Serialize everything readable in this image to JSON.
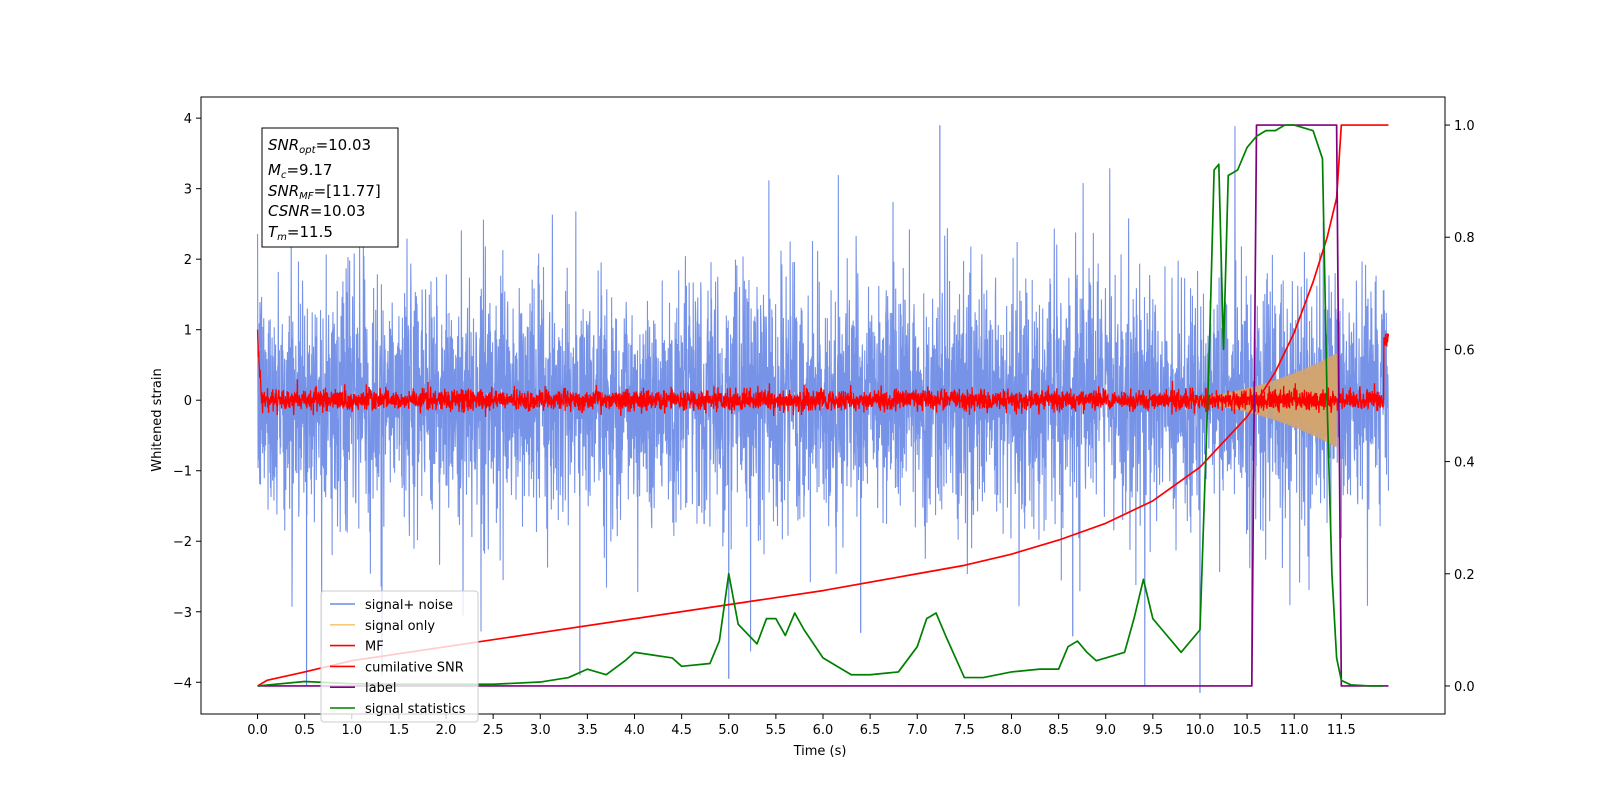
{
  "chart_data": {
    "type": "line",
    "xlabel": "Time (s)",
    "ylabel": "Whitened strain",
    "xlim": [
      -0.6,
      12.6
    ],
    "ylim_left": [
      -4.45,
      4.3
    ],
    "ylim_right": [
      -0.05,
      1.05
    ],
    "x_ticks": [
      "0.0",
      "0.5",
      "1.0",
      "1.5",
      "2.0",
      "2.5",
      "3.0",
      "3.5",
      "4.0",
      "4.5",
      "5.0",
      "5.5",
      "6.0",
      "6.5",
      "7.0",
      "7.5",
      "8.0",
      "8.5",
      "9.0",
      "9.5",
      "10.0",
      "10.5",
      "11.0",
      "11.5"
    ],
    "y_left_ticks": [
      "4",
      "3",
      "2",
      "1",
      "0",
      "−1",
      "−2",
      "−3",
      "−4"
    ],
    "y_right_ticks": [
      "1.0",
      "0.8",
      "0.6",
      "0.4",
      "0.2",
      "0.0"
    ],
    "grid": false,
    "legend_position": "lower-left",
    "annotation": {
      "line1": {
        "main": "SNR",
        "sub": "opt",
        "rest": "=10.03"
      },
      "line2": {
        "main": "M",
        "sub": "c",
        "rest": "=9.17"
      },
      "line3": {
        "main": "SNR",
        "sub": "MF",
        "rest": "=[11.77]"
      },
      "line4": {
        "main": "CSNR",
        "sub": "",
        "rest": "=10.03"
      },
      "line5": {
        "main": "T",
        "sub": "m",
        "rest": "=11.5"
      }
    },
    "series": [
      {
        "name": "signal+ noise",
        "color": "#6b8ae6",
        "axis": "left",
        "description_values": "noise band approx ±1.5 with spikes to 3.9 and −4.1, t 0 to 12"
      },
      {
        "name": "signal only",
        "color": "#f5c97a",
        "axis": "left",
        "envelope": {
          "start_t": 9.5,
          "end_t": 11.45,
          "max_amp": 0.65
        }
      },
      {
        "name": "MF",
        "color": "#ff0000",
        "axis": "left",
        "values_note": "noise around 0 with amplitude ~0.12, initial value 1.0 at t=0"
      },
      {
        "name": "cumilative SNR",
        "color": "#ff0000",
        "axis": "right",
        "x": [
          0.0,
          0.1,
          0.5,
          1.0,
          2.0,
          3.0,
          4.0,
          5.0,
          6.0,
          7.0,
          7.5,
          8.0,
          8.5,
          9.0,
          9.5,
          10.0,
          10.5,
          10.8,
          11.0,
          11.2,
          11.35,
          11.45,
          11.5,
          12.0
        ],
        "y": [
          0.0,
          0.01,
          0.025,
          0.045,
          0.07,
          0.095,
          0.12,
          0.145,
          0.17,
          0.2,
          0.215,
          0.235,
          0.26,
          0.29,
          0.33,
          0.39,
          0.48,
          0.56,
          0.63,
          0.72,
          0.8,
          0.87,
          1.0,
          1.0
        ]
      },
      {
        "name": "label",
        "color": "#800080",
        "axis": "right",
        "x": [
          0.0,
          10.55,
          10.6,
          11.45,
          11.5,
          12.0
        ],
        "y": [
          0.0,
          0.0,
          1.0,
          1.0,
          0.0,
          0.0
        ]
      },
      {
        "name": "signal statistics",
        "color": "#008000",
        "axis": "right",
        "x": [
          0.0,
          0.5,
          1.0,
          1.5,
          2.0,
          2.5,
          3.0,
          3.3,
          3.5,
          3.7,
          3.9,
          4.0,
          4.2,
          4.4,
          4.5,
          4.8,
          4.9,
          5.0,
          5.1,
          5.3,
          5.4,
          5.5,
          5.6,
          5.7,
          5.8,
          6.0,
          6.3,
          6.5,
          6.8,
          7.0,
          7.1,
          7.2,
          7.3,
          7.5,
          7.7,
          8.0,
          8.3,
          8.5,
          8.6,
          8.7,
          8.8,
          8.9,
          9.0,
          9.2,
          9.3,
          9.4,
          9.5,
          9.6,
          9.8,
          10.0,
          10.1,
          10.15,
          10.2,
          10.25,
          10.3,
          10.4,
          10.5,
          10.6,
          10.7,
          10.8,
          10.9,
          11.0,
          11.2,
          11.3,
          11.35,
          11.4,
          11.45,
          11.5,
          11.6,
          11.8,
          11.95
        ],
        "y": [
          0.0,
          0.008,
          0.004,
          0.003,
          0.003,
          0.003,
          0.007,
          0.015,
          0.03,
          0.02,
          0.045,
          0.06,
          0.055,
          0.05,
          0.035,
          0.04,
          0.08,
          0.2,
          0.11,
          0.075,
          0.12,
          0.12,
          0.09,
          0.13,
          0.1,
          0.05,
          0.02,
          0.02,
          0.025,
          0.07,
          0.12,
          0.13,
          0.09,
          0.015,
          0.015,
          0.025,
          0.03,
          0.03,
          0.07,
          0.08,
          0.06,
          0.045,
          0.05,
          0.06,
          0.12,
          0.19,
          0.12,
          0.1,
          0.06,
          0.1,
          0.6,
          0.92,
          0.93,
          0.6,
          0.91,
          0.92,
          0.96,
          0.98,
          0.99,
          0.99,
          1.0,
          1.0,
          0.99,
          0.94,
          0.5,
          0.2,
          0.05,
          0.01,
          0.002,
          0.0,
          0.0
        ]
      }
    ]
  }
}
